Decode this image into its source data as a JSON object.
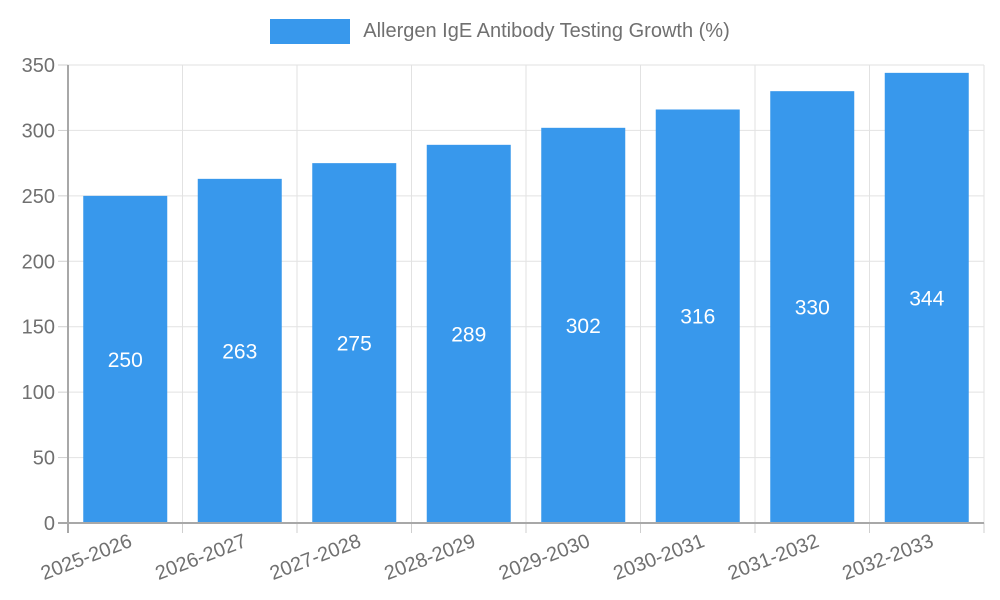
{
  "chart_data": {
    "type": "bar",
    "title": "Allergen IgE Antibody Testing Growth (%)",
    "categories": [
      "2025-2026",
      "2026-2027",
      "2027-2028",
      "2028-2029",
      "2029-2030",
      "2030-2031",
      "2031-2032",
      "2032-2033"
    ],
    "values": [
      250,
      263,
      275,
      289,
      302,
      316,
      330,
      344
    ],
    "xlabel": "",
    "ylabel": "",
    "ylim": [
      0,
      350
    ],
    "ytick_step": 50,
    "ytick_labels": [
      "0",
      "50",
      "100",
      "150",
      "200",
      "250",
      "300",
      "350"
    ],
    "grid": true,
    "legend_position": "top",
    "bar_color": "#3898EC",
    "bar_label_color": "#FFFFFF",
    "axis_text_color": "#707070",
    "grid_color": "#E2E2E2",
    "tick_color": "#CFCFCF",
    "axis_line_color": "#A8A8A8"
  },
  "legend": {
    "label": "Allergen IgE Antibody Testing Growth (%)",
    "swatch_color": "#3898EC"
  }
}
